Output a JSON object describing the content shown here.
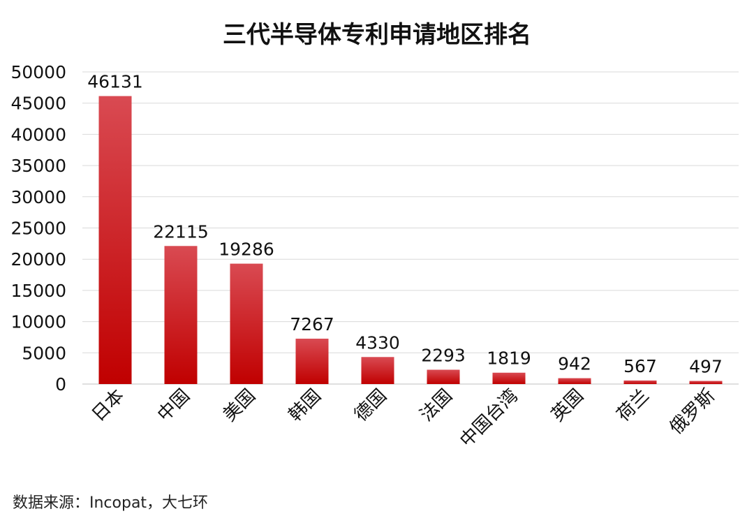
{
  "chart_data": {
    "type": "bar",
    "title": "三代半导体专利申请地区排名",
    "categories": [
      "日本",
      "中国",
      "美国",
      "韩国",
      "德国",
      "法国",
      "中国台湾",
      "英国",
      "荷兰",
      "俄罗斯"
    ],
    "values": [
      46131,
      22115,
      19286,
      7267,
      4330,
      2293,
      1819,
      942,
      567,
      497
    ],
    "ylim": [
      0,
      50000
    ],
    "yticks": [
      0,
      5000,
      10000,
      15000,
      20000,
      25000,
      30000,
      35000,
      40000,
      45000,
      50000
    ],
    "grid": true,
    "bar_color_top": "#d94a52",
    "bar_color_bottom": "#c00000"
  },
  "source": "数据来源：Incopat，大七环"
}
